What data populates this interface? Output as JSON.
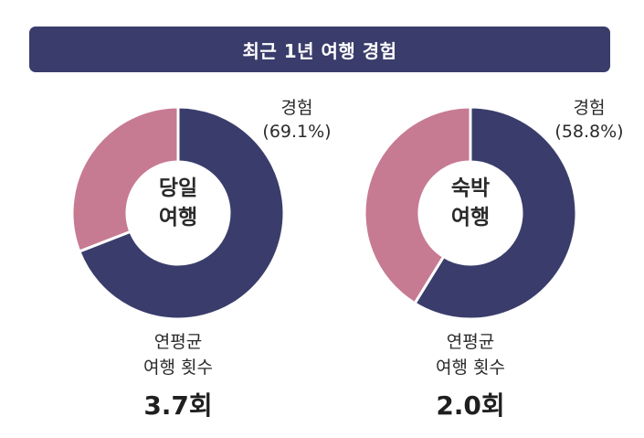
{
  "title": "최근 1년 여행 경험",
  "colors": {
    "experience": "#3a3d6b",
    "no_experience": "#c77b92",
    "title_bg": "#3a3d6b"
  },
  "chart_data": [
    {
      "type": "pie",
      "center_line1": "당일",
      "center_line2": "여행",
      "experience_label": "경험",
      "experience_pct_text": "(69.1%)",
      "values": [
        69.1,
        30.9
      ],
      "avg_label_line1": "연평균",
      "avg_label_line2": "여행 횟수",
      "avg_value": "3.7회"
    },
    {
      "type": "pie",
      "center_line1": "숙박",
      "center_line2": "여행",
      "experience_label": "경험",
      "experience_pct_text": "(58.8%)",
      "values": [
        58.8,
        41.2
      ],
      "avg_label_line1": "연평균",
      "avg_label_line2": "여행 횟수",
      "avg_value": "2.0회"
    }
  ]
}
